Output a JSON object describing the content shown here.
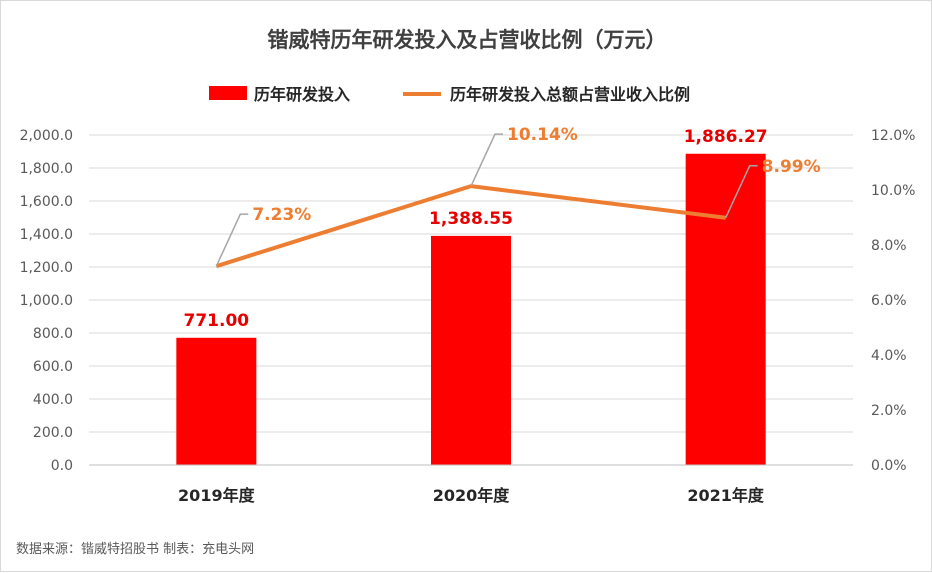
{
  "colors": {
    "bar": "#ff0000",
    "line": "#ed7d31",
    "grid": "#d9d9d9",
    "leader": "#a6a6a6"
  },
  "chart_data": {
    "type": "bar",
    "title": "锴威特历年研发投入及占营收比例（万元）",
    "categories": [
      "2019年度",
      "2020年度",
      "2021年度"
    ],
    "series": [
      {
        "name": "历年研发投入",
        "type": "bar",
        "axis": "left",
        "values": [
          771.0,
          1388.55,
          1886.27
        ],
        "labels": [
          "771.00",
          "1,388.55",
          "1,886.27"
        ]
      },
      {
        "name": "历年研发投入总额占营业收入比例",
        "type": "line",
        "axis": "right",
        "values": [
          7.23,
          10.14,
          8.99
        ],
        "labels": [
          "7.23%",
          "10.14%",
          "8.99%"
        ]
      }
    ],
    "y_left": {
      "min": 0,
      "max": 2000,
      "ticks": [
        "0.0",
        "200.0",
        "400.0",
        "600.0",
        "800.0",
        "1,000.0",
        "1,200.0",
        "1,400.0",
        "1,600.0",
        "1,800.0",
        "2,000.0"
      ]
    },
    "y_right": {
      "min": 0,
      "max": 12,
      "ticks": [
        "0.0%",
        "2.0%",
        "4.0%",
        "6.0%",
        "8.0%",
        "10.0%",
        "12.0%"
      ]
    },
    "grid": true,
    "legend": "top"
  },
  "source_note": "数据来源：锴威特招股书   制表：充电头网"
}
